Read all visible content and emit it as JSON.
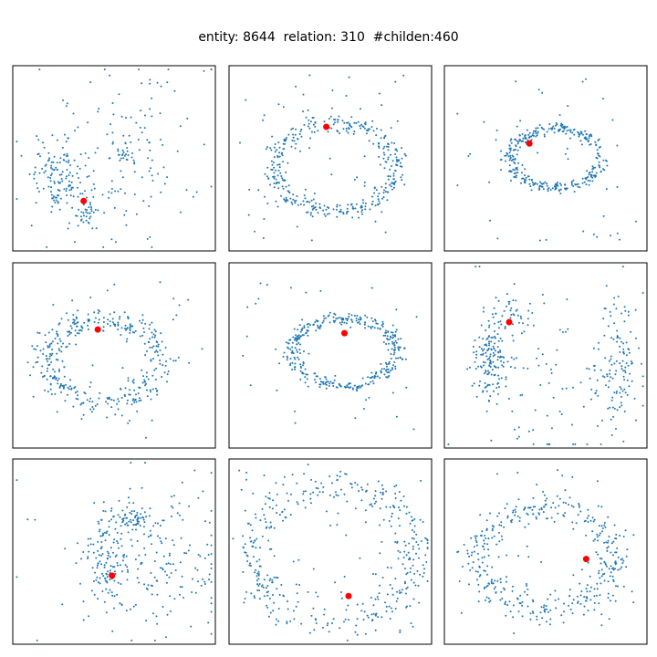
{
  "figure": {
    "title": "entity: 8644  relation: 310  #childen:460"
  },
  "colors": {
    "points": "#1f77b4",
    "highlight": "#ff0000",
    "frame": "#000000"
  },
  "chart_data": [
    {
      "type": "scatter",
      "axes": "hidden",
      "grid": false,
      "xlim": [
        0,
        1
      ],
      "ylim": [
        0,
        1
      ],
      "highlight": [
        0.35,
        0.27
      ],
      "shape": "clusters",
      "clusters": [
        {
          "c": [
            0.22,
            0.4
          ],
          "s": [
            0.06,
            0.1
          ],
          "n": 120
        },
        {
          "c": [
            0.35,
            0.22
          ],
          "s": [
            0.03,
            0.04
          ],
          "n": 35
        },
        {
          "c": [
            0.55,
            0.5
          ],
          "s": [
            0.22,
            0.25
          ],
          "n": 150
        },
        {
          "c": [
            0.55,
            0.52
          ],
          "s": [
            0.03,
            0.03
          ],
          "n": 20
        }
      ]
    },
    {
      "type": "scatter",
      "axes": "hidden",
      "grid": false,
      "xlim": [
        0,
        1
      ],
      "ylim": [
        0,
        1
      ],
      "highlight": [
        0.48,
        0.67
      ],
      "shape": "ring",
      "ring": {
        "c": [
          0.52,
          0.45
        ],
        "r": [
          0.3,
          0.24
        ],
        "w": 0.05,
        "n": 360
      },
      "noise": 60
    },
    {
      "type": "scatter",
      "axes": "hidden",
      "grid": false,
      "xlim": [
        0,
        1
      ],
      "ylim": [
        0,
        1
      ],
      "highlight": [
        0.42,
        0.58
      ],
      "shape": "ring",
      "ring": {
        "c": [
          0.55,
          0.5
        ],
        "r": [
          0.22,
          0.16
        ],
        "w": 0.05,
        "n": 330
      },
      "noise": 40
    },
    {
      "type": "scatter",
      "axes": "hidden",
      "grid": false,
      "xlim": [
        0,
        1
      ],
      "ylim": [
        0,
        1
      ],
      "highlight": [
        0.42,
        0.64
      ],
      "shape": "ring",
      "ring": {
        "c": [
          0.45,
          0.47
        ],
        "r": [
          0.28,
          0.23
        ],
        "w": 0.07,
        "n": 360
      },
      "noise": 40
    },
    {
      "type": "scatter",
      "axes": "hidden",
      "grid": false,
      "xlim": [
        0,
        1
      ],
      "ylim": [
        0,
        1
      ],
      "highlight": [
        0.57,
        0.62
      ],
      "shape": "ring",
      "ring": {
        "c": [
          0.57,
          0.52
        ],
        "r": [
          0.26,
          0.18
        ],
        "w": 0.05,
        "n": 360
      },
      "noise": 30
    },
    {
      "type": "scatter",
      "axes": "hidden",
      "grid": false,
      "xlim": [
        0,
        1
      ],
      "ylim": [
        0,
        1
      ],
      "highlight": [
        0.32,
        0.68
      ],
      "shape": "clusters",
      "clusters": [
        {
          "c": [
            0.23,
            0.47
          ],
          "s": [
            0.04,
            0.1
          ],
          "n": 140
        },
        {
          "c": [
            0.32,
            0.72
          ],
          "s": [
            0.06,
            0.05
          ],
          "n": 40
        },
        {
          "c": [
            0.85,
            0.45
          ],
          "s": [
            0.05,
            0.18
          ],
          "n": 110
        },
        {
          "c": [
            0.55,
            0.4
          ],
          "s": [
            0.25,
            0.28
          ],
          "n": 100
        }
      ]
    },
    {
      "type": "scatter",
      "axes": "hidden",
      "grid": false,
      "xlim": [
        0,
        1
      ],
      "ylim": [
        0,
        1
      ],
      "highlight": [
        0.49,
        0.37
      ],
      "shape": "clusters",
      "clusters": [
        {
          "c": [
            0.47,
            0.45
          ],
          "s": [
            0.05,
            0.12
          ],
          "n": 120
        },
        {
          "c": [
            0.62,
            0.68
          ],
          "s": [
            0.06,
            0.03
          ],
          "n": 50
        },
        {
          "c": [
            0.72,
            0.48
          ],
          "s": [
            0.16,
            0.2
          ],
          "n": 150
        },
        {
          "c": [
            0.5,
            0.45
          ],
          "s": [
            0.28,
            0.28
          ],
          "n": 40
        }
      ]
    },
    {
      "type": "scatter",
      "axes": "hidden",
      "grid": false,
      "xlim": [
        0,
        1
      ],
      "ylim": [
        0,
        1
      ],
      "highlight": [
        0.59,
        0.26
      ],
      "shape": "ring",
      "ring": {
        "c": [
          0.52,
          0.48
        ],
        "r": [
          0.4,
          0.38
        ],
        "w": 0.06,
        "n": 330
      },
      "noise": 100
    },
    {
      "type": "scatter",
      "axes": "hidden",
      "grid": false,
      "xlim": [
        0,
        1
      ],
      "ylim": [
        0,
        1
      ],
      "highlight": [
        0.7,
        0.46
      ],
      "shape": "ring",
      "ring": {
        "c": [
          0.5,
          0.47
        ],
        "r": [
          0.33,
          0.28
        ],
        "w": 0.07,
        "n": 380
      },
      "noise": 40
    }
  ]
}
